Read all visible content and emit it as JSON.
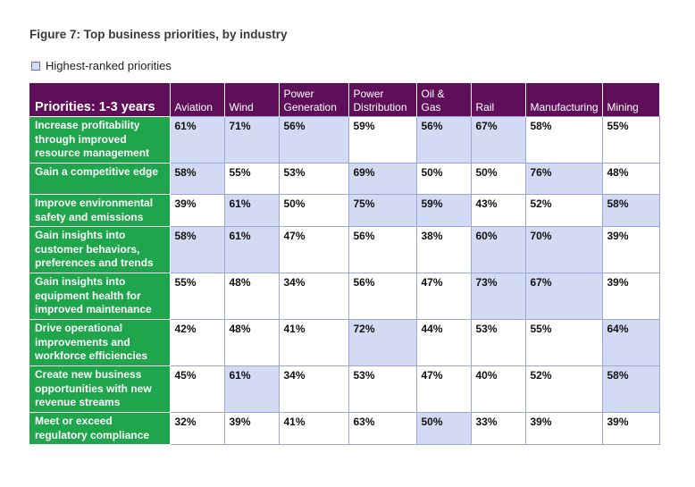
{
  "figure_title": "Figure 7: Top business priorities, by industry",
  "legend_label": "Highest-ranked priorities",
  "colors": {
    "header": "#5f0f5a",
    "row_header": "#1fa54b",
    "highlight": "#d3daf3"
  },
  "table": {
    "headers": [
      "Priorities: 1-3 years",
      "Aviation",
      "Wind",
      "Power Generation",
      "Power Distribution",
      "Oil & Gas",
      "Rail",
      "Manufacturing",
      "Mining"
    ],
    "rows": [
      {
        "priority": "Increase profitability through improved resource management",
        "values": [
          "61%",
          "71%",
          "56%",
          "59%",
          "56%",
          "67%",
          "58%",
          "55%"
        ],
        "highlighted": [
          true,
          true,
          true,
          false,
          true,
          true,
          false,
          false
        ]
      },
      {
        "priority": "Gain a competitive edge",
        "values": [
          "58%",
          "55%",
          "53%",
          "69%",
          "50%",
          "50%",
          "76%",
          "48%"
        ],
        "highlighted": [
          true,
          false,
          false,
          true,
          false,
          false,
          true,
          false
        ]
      },
      {
        "priority": "Improve environmental safety and emissions",
        "values": [
          "39%",
          "61%",
          "50%",
          "75%",
          "59%",
          "43%",
          "52%",
          "58%"
        ],
        "highlighted": [
          false,
          true,
          false,
          true,
          true,
          false,
          false,
          true
        ]
      },
      {
        "priority": "Gain insights into customer behaviors, preferences and trends",
        "values": [
          "58%",
          "61%",
          "47%",
          "56%",
          "38%",
          "60%",
          "70%",
          "39%"
        ],
        "highlighted": [
          true,
          true,
          false,
          false,
          false,
          true,
          true,
          false
        ]
      },
      {
        "priority": "Gain insights into equipment health for improved maintenance",
        "values": [
          "55%",
          "48%",
          "34%",
          "56%",
          "47%",
          "73%",
          "67%",
          "39%"
        ],
        "highlighted": [
          false,
          false,
          false,
          false,
          false,
          true,
          true,
          false
        ]
      },
      {
        "priority": "Drive operational improvements and workforce efficiencies",
        "values": [
          "42%",
          "48%",
          "41%",
          "72%",
          "44%",
          "53%",
          "55%",
          "64%"
        ],
        "highlighted": [
          false,
          false,
          false,
          true,
          false,
          false,
          false,
          true
        ]
      },
      {
        "priority": "Create new business opportunities with new revenue streams",
        "values": [
          "45%",
          "61%",
          "34%",
          "53%",
          "47%",
          "40%",
          "52%",
          "58%"
        ],
        "highlighted": [
          false,
          true,
          false,
          false,
          false,
          false,
          false,
          true
        ]
      },
      {
        "priority": "Meet or exceed regulatory compliance",
        "values": [
          "32%",
          "39%",
          "41%",
          "63%",
          "50%",
          "33%",
          "39%",
          "39%"
        ],
        "highlighted": [
          false,
          false,
          false,
          false,
          true,
          false,
          false,
          false
        ]
      }
    ]
  }
}
